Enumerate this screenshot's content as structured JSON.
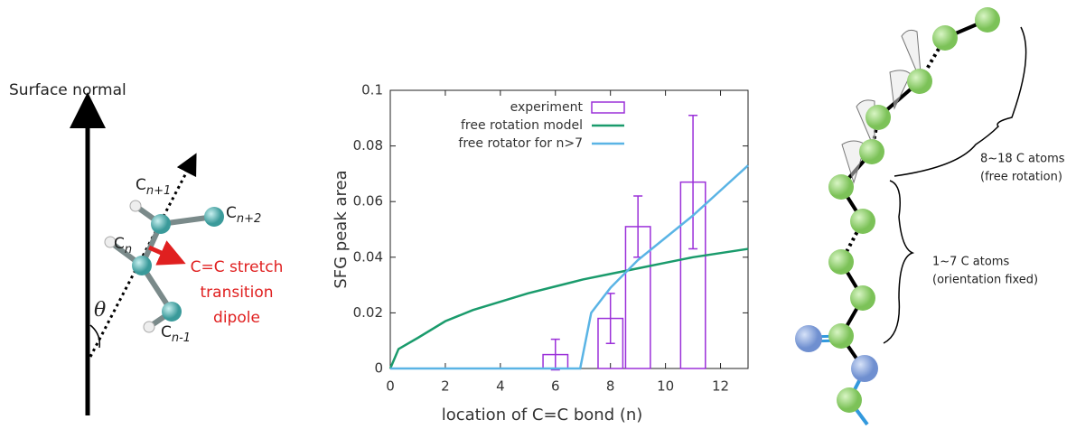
{
  "chart_data": {
    "type": "bar-line",
    "xlabel": "location of C=C bond (n)",
    "ylabel": "SFG peak area",
    "xlim": [
      0,
      13
    ],
    "ylim": [
      0,
      0.1
    ],
    "xticks": [
      0,
      2,
      4,
      6,
      8,
      10,
      12
    ],
    "yticks": [
      0,
      0.02,
      0.04,
      0.06,
      0.08,
      0.1
    ],
    "legend": "upper left",
    "series": [
      {
        "name": "experiment",
        "type": "bar",
        "color": "#9b30d9",
        "x": [
          6,
          8,
          9,
          11
        ],
        "values": [
          0.005,
          0.018,
          0.051,
          0.067
        ],
        "errors": [
          0.0055,
          0.009,
          0.011,
          0.024
        ]
      },
      {
        "name": "free rotation model",
        "type": "line",
        "color": "#1a9b6c",
        "x": [
          0,
          0.3,
          1,
          2,
          3,
          4,
          5,
          6,
          7,
          8,
          9,
          10,
          11,
          12,
          13
        ],
        "values": [
          0,
          0.007,
          0.011,
          0.017,
          0.021,
          0.024,
          0.027,
          0.0295,
          0.032,
          0.034,
          0.036,
          0.038,
          0.04,
          0.0415,
          0.043
        ]
      },
      {
        "name": "free rotator for n>7",
        "type": "line",
        "color": "#5ab4e5",
        "x": [
          0,
          6.9,
          7.3,
          8,
          9,
          10,
          11,
          12,
          13
        ],
        "values": [
          0,
          0,
          0.02,
          0.029,
          0.039,
          0.047,
          0.055,
          0.064,
          0.073
        ]
      }
    ]
  },
  "left_diagram": {
    "axis_label": "Surface normal",
    "atom": "C",
    "subscripts": [
      "n+1",
      "n+2",
      "n",
      "n-1"
    ],
    "angle": "θ",
    "dipole_lines": [
      "C=C stretch",
      "transition",
      "dipole"
    ]
  },
  "right_diagram": {
    "upper": [
      "8~18 C atoms",
      "(free rotation)"
    ],
    "lower": [
      "1~7 C atoms",
      "(orientation fixed)"
    ]
  }
}
